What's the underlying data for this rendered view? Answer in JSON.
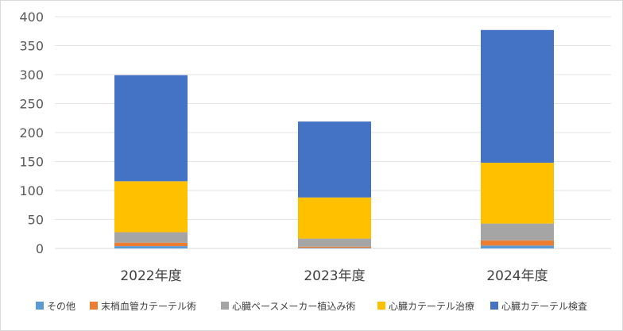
{
  "chart_data": {
    "type": "bar",
    "stacked": true,
    "categories": [
      "2022年度",
      "2023年度",
      "2024年度"
    ],
    "series": [
      {
        "name": "その他",
        "values": [
          4,
          1,
          5
        ],
        "color": "#5B9BD5"
      },
      {
        "name": "末梢血管カテーテル術",
        "values": [
          6,
          2,
          9
        ],
        "color": "#ED7D31"
      },
      {
        "name": "心臓ペースメーカー植込み術",
        "values": [
          18,
          14,
          29
        ],
        "color": "#A5A5A5"
      },
      {
        "name": "心臓カテーテル治療",
        "values": [
          88,
          71,
          105
        ],
        "color": "#FFC000"
      },
      {
        "name": "心臓カテーテル検査",
        "values": [
          183,
          131,
          229
        ],
        "color": "#4472C4"
      }
    ],
    "ylim": [
      0,
      400
    ],
    "yticks": [
      0,
      50,
      100,
      150,
      200,
      250,
      300,
      350,
      400
    ],
    "grid": true,
    "legend_position": "bottom",
    "title": "",
    "xlabel": "",
    "ylabel": ""
  }
}
